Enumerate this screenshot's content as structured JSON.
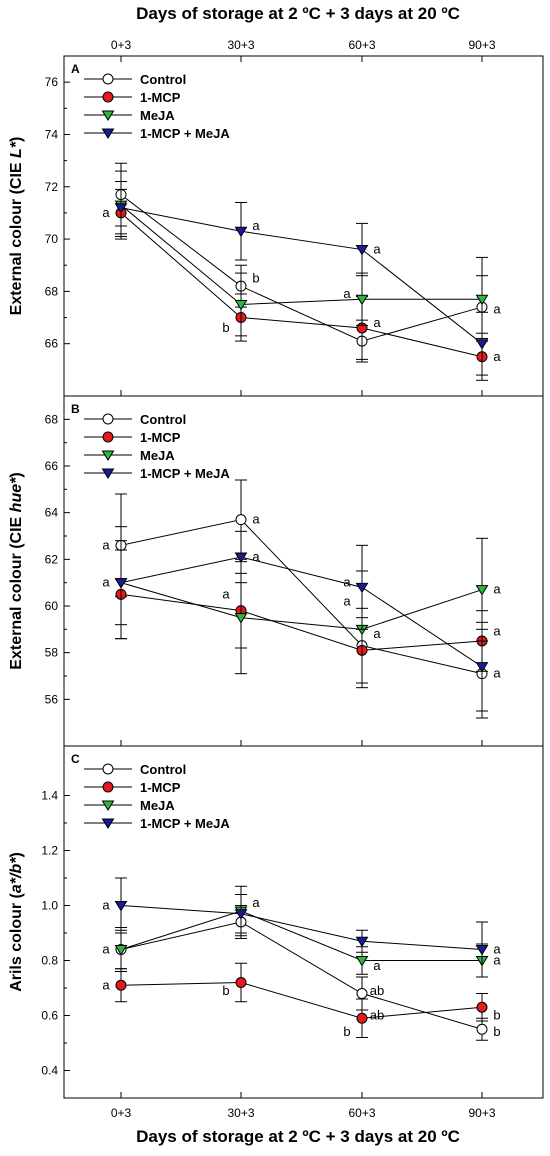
{
  "figure": {
    "top_xlabel": "Days of storage at 2 ºC + 3 days at 20 ºC",
    "bottom_xlabel": "Days of storage at 2 ºC + 3 days at 20 ºC"
  },
  "colors": {
    "Control": "#ffffff",
    "1-MCP": "#e41a1c",
    "MeJA": "#2db83d",
    "1-MCP + MeJA": "#1a1a9a"
  },
  "chart_data": [
    {
      "type": "line",
      "panel_label": "A",
      "ylabel_parts": [
        "External colour (CIE ",
        "L*",
        ")"
      ],
      "categories": [
        "0+3",
        "30+3",
        "60+3",
        "90+3"
      ],
      "ylim": [
        64,
        77
      ],
      "yticks": [
        66,
        68,
        70,
        72,
        74,
        76
      ],
      "legend_position": "top-left",
      "grid": false,
      "series": [
        {
          "name": "Control",
          "marker": "circle",
          "values": [
            71.7,
            68.2,
            66.1,
            67.4
          ],
          "errors": [
            1.2,
            0.8,
            0.8,
            1.2
          ]
        },
        {
          "name": "1-MCP",
          "marker": "circle",
          "values": [
            71.0,
            67.0,
            66.6,
            65.5
          ],
          "errors": [
            0.9,
            0.9,
            1.2,
            0.9
          ]
        },
        {
          "name": "MeJA",
          "marker": "triangle-down",
          "values": [
            71.3,
            67.5,
            67.7,
            67.7
          ],
          "errors": [
            1.3,
            1.2,
            1.0,
            1.6
          ]
        },
        {
          "name": "1-MCP + MeJA",
          "marker": "triangle-down",
          "values": [
            71.2,
            70.3,
            69.6,
            66.0
          ],
          "errors": [
            1.0,
            1.1,
            1.0,
            1.2
          ]
        }
      ],
      "annotations": [
        {
          "x": "0+3",
          "y": 71.0,
          "text": "a",
          "side": "left"
        },
        {
          "x": "30+3",
          "y": 70.5,
          "text": "a",
          "side": "right"
        },
        {
          "x": "30+3",
          "y": 68.5,
          "text": "b",
          "side": "right"
        },
        {
          "x": "30+3",
          "y": 66.6,
          "text": "b",
          "side": "left"
        },
        {
          "x": "60+3",
          "y": 69.6,
          "text": "a",
          "side": "right"
        },
        {
          "x": "60+3",
          "y": 67.9,
          "text": "a",
          "side": "left"
        },
        {
          "x": "60+3",
          "y": 66.8,
          "text": "a",
          "side": "right"
        },
        {
          "x": "90+3",
          "y": 67.3,
          "text": "a",
          "side": "right"
        },
        {
          "x": "90+3",
          "y": 65.5,
          "text": "a",
          "side": "right"
        }
      ]
    },
    {
      "type": "line",
      "panel_label": "B",
      "ylabel_parts": [
        "External colour (CIE ",
        "hue*",
        ")"
      ],
      "categories": [
        "0+3",
        "30+3",
        "60+3",
        "90+3"
      ],
      "ylim": [
        54,
        69
      ],
      "yticks": [
        56,
        58,
        60,
        62,
        64,
        66,
        68
      ],
      "legend_position": "top-left",
      "grid": false,
      "series": [
        {
          "name": "Control",
          "marker": "circle",
          "values": [
            62.6,
            63.7,
            58.3,
            57.1
          ],
          "errors": [
            2.2,
            1.7,
            1.6,
            1.9
          ]
        },
        {
          "name": "1-MCP",
          "marker": "circle",
          "values": [
            60.5,
            59.8,
            58.1,
            58.5
          ],
          "errors": [
            1.9,
            1.6,
            1.4,
            1.3
          ]
        },
        {
          "name": "MeJA",
          "marker": "triangle-down",
          "values": [
            61.0,
            59.5,
            59.0,
            60.7
          ],
          "errors": [
            2.4,
            2.4,
            2.5,
            2.2
          ]
        },
        {
          "name": "1-MCP + MeJA",
          "marker": "triangle-down",
          "values": [
            61.0,
            62.1,
            60.8,
            57.4
          ],
          "errors": [
            1.8,
            1.1,
            1.8,
            1.9
          ]
        }
      ],
      "annotations": [
        {
          "x": "0+3",
          "y": 62.6,
          "text": "a",
          "side": "left"
        },
        {
          "x": "0+3",
          "y": 61.0,
          "text": "a",
          "side": "left"
        },
        {
          "x": "30+3",
          "y": 63.7,
          "text": "a",
          "side": "right"
        },
        {
          "x": "30+3",
          "y": 62.1,
          "text": "a",
          "side": "right"
        },
        {
          "x": "30+3",
          "y": 60.5,
          "text": "a",
          "side": "left"
        },
        {
          "x": "60+3",
          "y": 61.0,
          "text": "a",
          "side": "left"
        },
        {
          "x": "60+3",
          "y": 60.2,
          "text": "a",
          "side": "left"
        },
        {
          "x": "60+3",
          "y": 58.8,
          "text": "a",
          "side": "right"
        },
        {
          "x": "90+3",
          "y": 60.7,
          "text": "a",
          "side": "right"
        },
        {
          "x": "90+3",
          "y": 58.9,
          "text": "a",
          "side": "right"
        },
        {
          "x": "90+3",
          "y": 57.1,
          "text": "a",
          "side": "right"
        }
      ]
    },
    {
      "type": "line",
      "panel_label": "C",
      "ylabel_parts": [
        "Arils colour (",
        "a*/b*",
        ")"
      ],
      "categories": [
        "0+3",
        "30+3",
        "60+3",
        "90+3"
      ],
      "ylim": [
        0.3,
        1.58
      ],
      "yticks": [
        0.4,
        0.6,
        0.8,
        1.0,
        1.2,
        1.4
      ],
      "ytick_labels": [
        "0.4",
        "0.6",
        "0.8",
        "1.0",
        "1.2",
        "1.4"
      ],
      "legend_position": "top-left",
      "grid": false,
      "series": [
        {
          "name": "Control",
          "marker": "circle",
          "values": [
            0.84,
            0.94,
            0.68,
            0.55
          ],
          "errors": [
            0.07,
            0.06,
            0.06,
            0.04
          ]
        },
        {
          "name": "1-MCP",
          "marker": "circle",
          "values": [
            0.71,
            0.72,
            0.59,
            0.63
          ],
          "errors": [
            0.06,
            0.07,
            0.07,
            0.05
          ]
        },
        {
          "name": "MeJA",
          "marker": "triangle-down",
          "values": [
            0.84,
            0.98,
            0.8,
            0.8
          ],
          "errors": [
            0.08,
            0.09,
            0.05,
            0.06
          ]
        },
        {
          "name": "1-MCP + MeJA",
          "marker": "triangle-down",
          "values": [
            1.0,
            0.97,
            0.87,
            0.84
          ],
          "errors": [
            0.1,
            0.07,
            0.04,
            0.1
          ]
        }
      ],
      "annotations": [
        {
          "x": "0+3",
          "y": 1.0,
          "text": "a",
          "side": "left"
        },
        {
          "x": "0+3",
          "y": 0.84,
          "text": "a",
          "side": "left"
        },
        {
          "x": "0+3",
          "y": 0.71,
          "text": "a",
          "side": "left"
        },
        {
          "x": "30+3",
          "y": 1.01,
          "text": "a",
          "side": "right"
        },
        {
          "x": "30+3",
          "y": 0.69,
          "text": "b",
          "side": "left"
        },
        {
          "x": "60+3",
          "y": 0.78,
          "text": "a",
          "side": "right"
        },
        {
          "x": "60+3",
          "y": 0.69,
          "text": "ab",
          "side": "right"
        },
        {
          "x": "60+3",
          "y": 0.6,
          "text": "ab",
          "side": "right"
        },
        {
          "x": "60+3",
          "y": 0.54,
          "text": "b",
          "side": "left"
        },
        {
          "x": "90+3",
          "y": 0.84,
          "text": "a",
          "side": "right"
        },
        {
          "x": "90+3",
          "y": 0.8,
          "text": "a",
          "side": "right"
        },
        {
          "x": "90+3",
          "y": 0.6,
          "text": "b",
          "side": "right"
        },
        {
          "x": "90+3",
          "y": 0.54,
          "text": "b",
          "side": "right"
        }
      ]
    }
  ]
}
